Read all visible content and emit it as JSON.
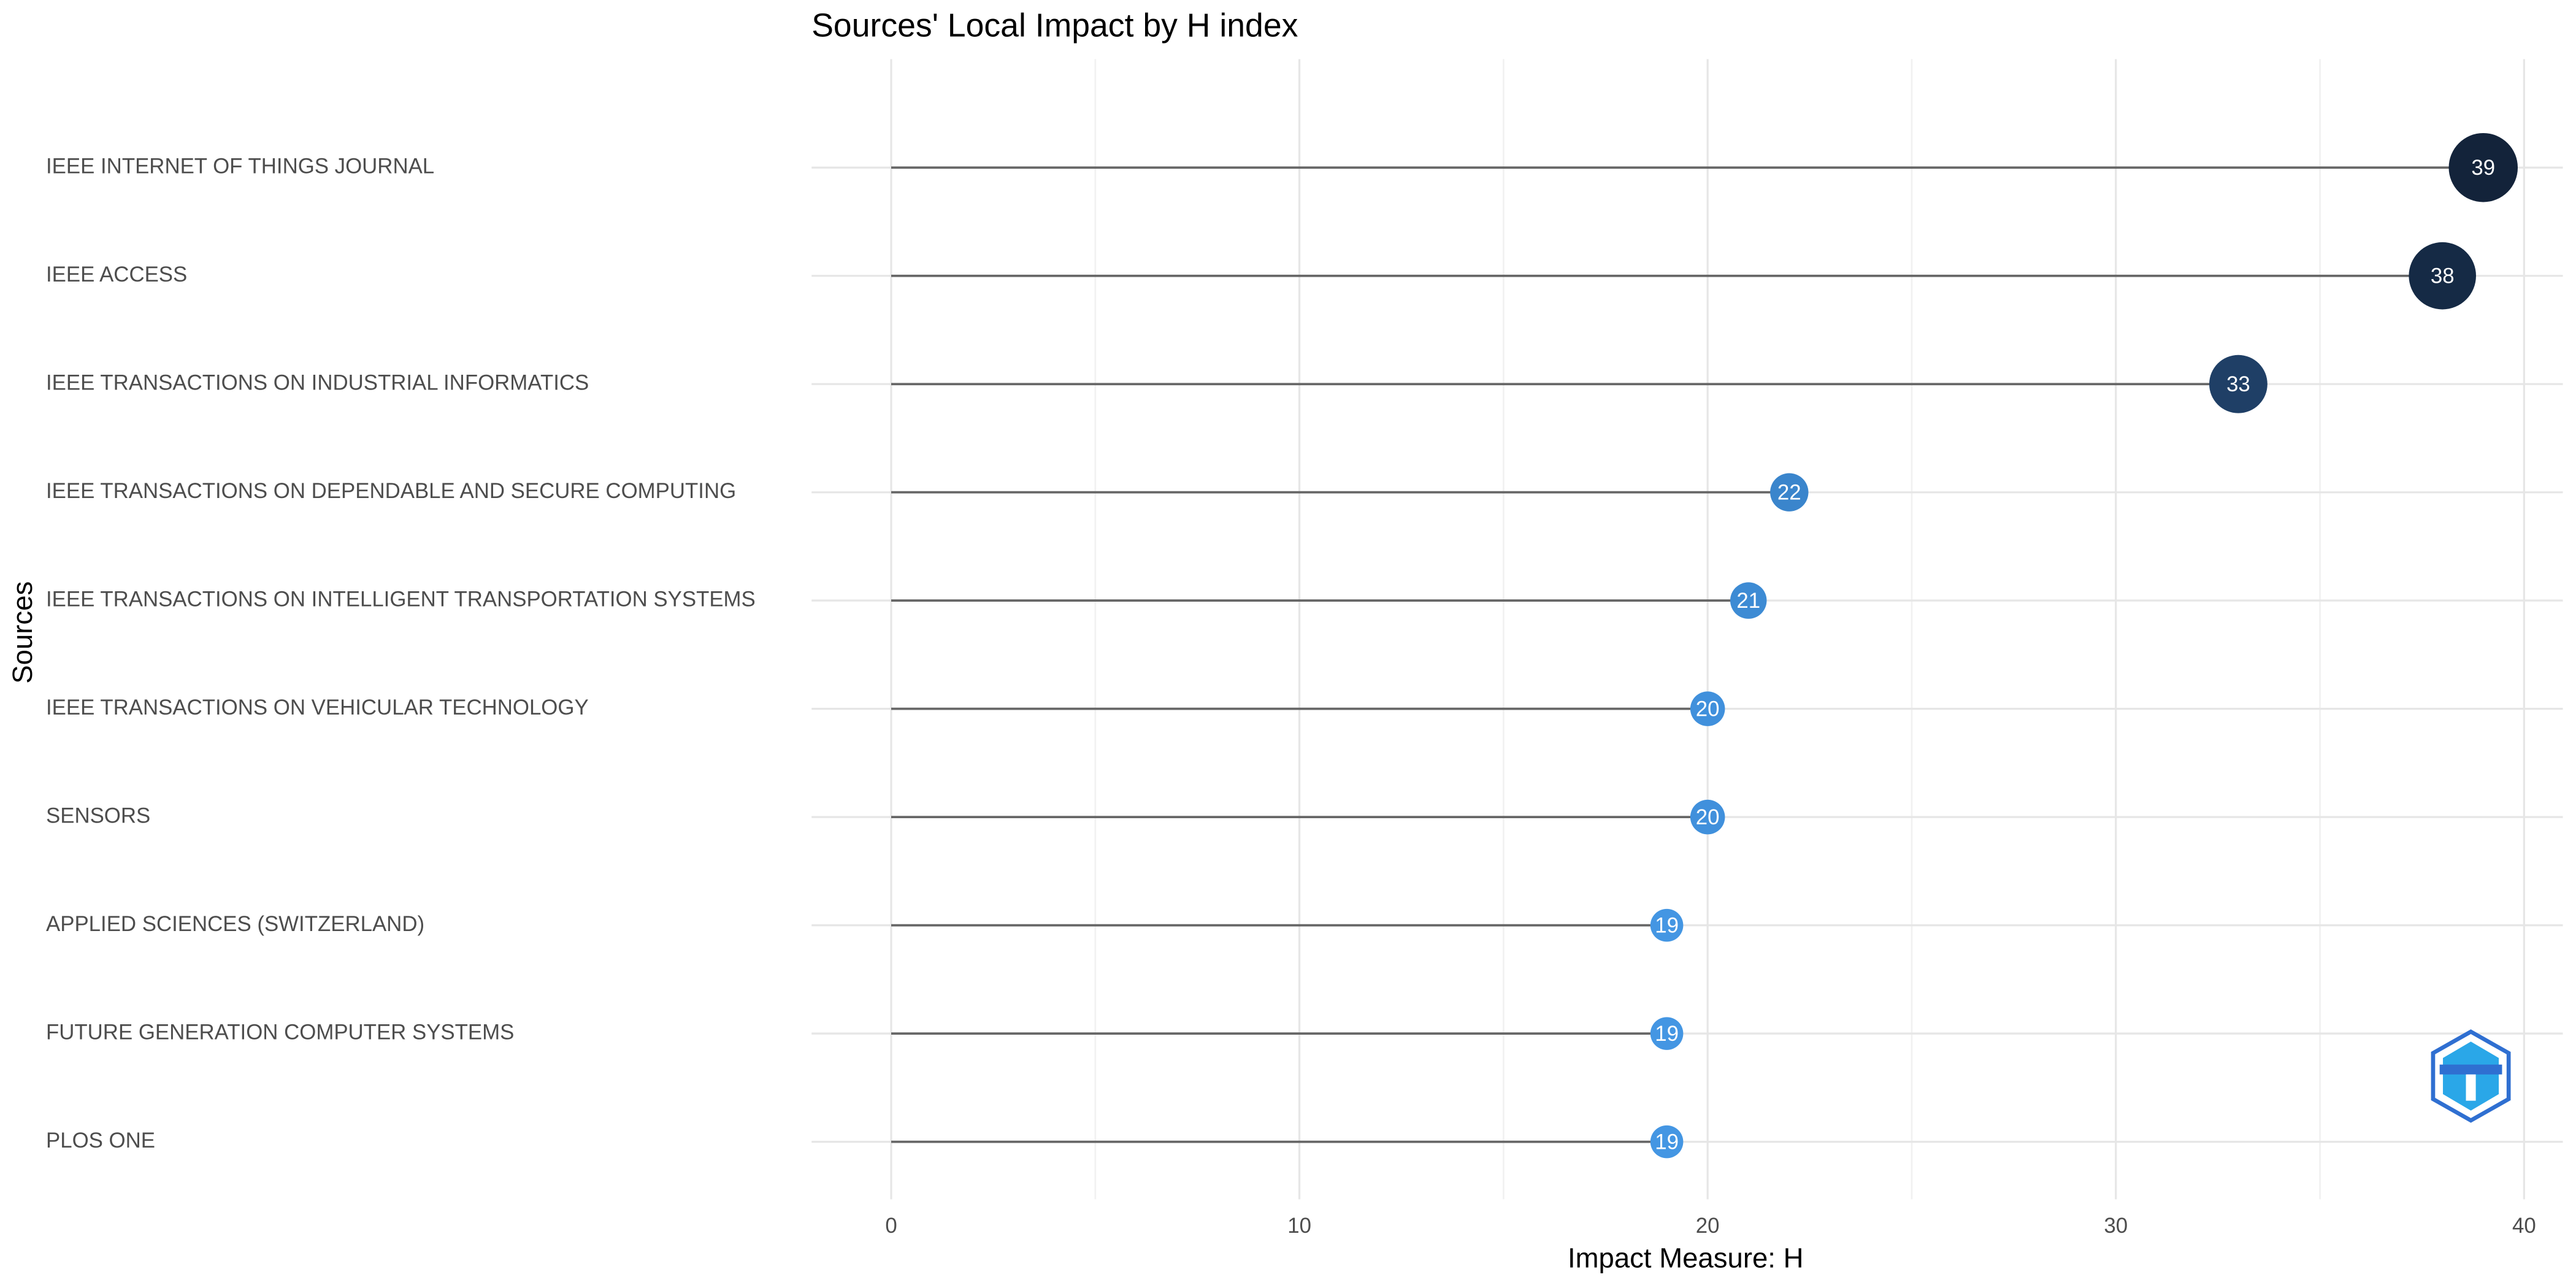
{
  "chart_data": {
    "type": "lollipop",
    "title": "Sources' Local Impact by H index",
    "x_label": "Impact Measure: H",
    "y_label": "Sources",
    "categories": [
      "IEEE INTERNET OF THINGS JOURNAL",
      "IEEE ACCESS",
      "IEEE TRANSACTIONS ON INDUSTRIAL INFORMATICS",
      "IEEE TRANSACTIONS ON DEPENDABLE AND SECURE COMPUTING",
      "IEEE TRANSACTIONS ON INTELLIGENT TRANSPORTATION SYSTEMS",
      "IEEE TRANSACTIONS ON VEHICULAR TECHNOLOGY",
      "SENSORS",
      "APPLIED SCIENCES (SWITZERLAND)",
      "FUTURE GENERATION COMPUTER SYSTEMS",
      "PLOS ONE"
    ],
    "values": [
      39,
      38,
      33,
      22,
      21,
      20,
      20,
      19,
      19,
      19
    ],
    "colors": [
      "#13233a",
      "#152a45",
      "#1f3f66",
      "#3a85cc",
      "#3d8bd4",
      "#4090dc",
      "#4090dc",
      "#4496e3",
      "#4496e3",
      "#4496e3"
    ],
    "xlim": [
      -1.95,
      40.95
    ],
    "xticks": [
      0,
      10,
      20,
      30,
      40
    ],
    "x_minor_ticks": [
      5,
      15,
      25,
      35
    ],
    "grid": true
  }
}
